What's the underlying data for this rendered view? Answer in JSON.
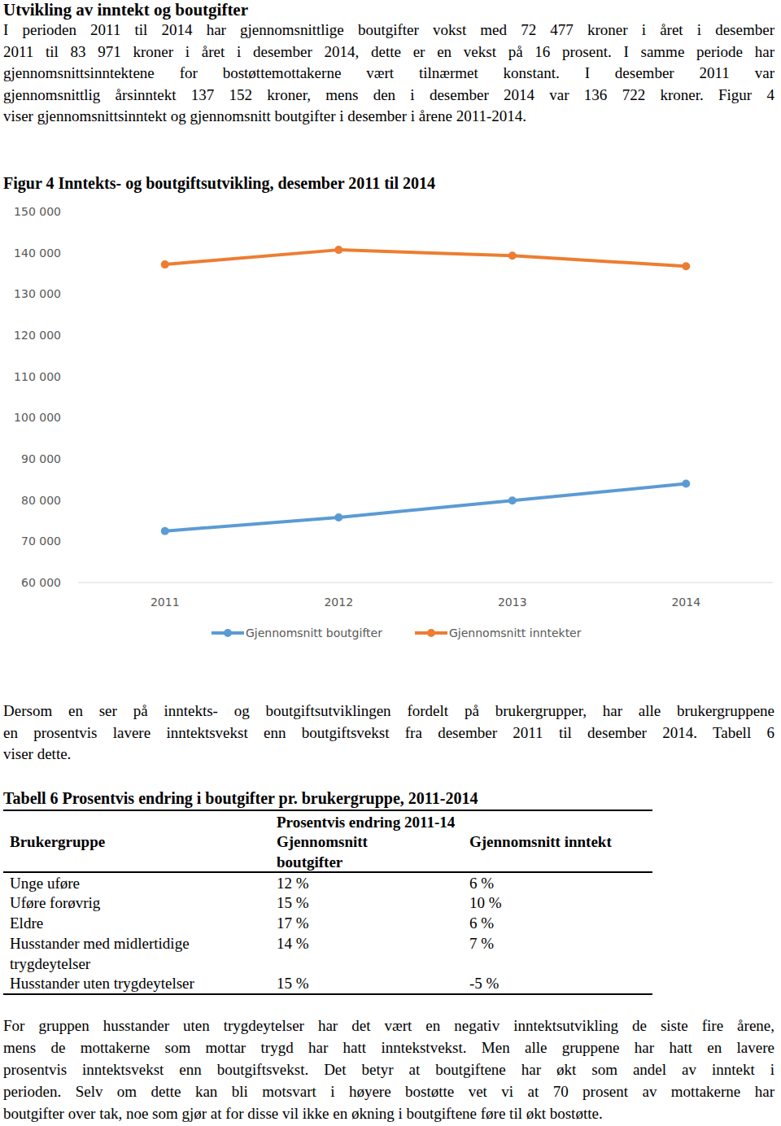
{
  "header": {
    "title": "Utvikling av inntekt og boutgifter"
  },
  "intro": {
    "lines": [
      "I perioden 2011 til 2014 har gjennomsnittlige boutgifter vokst med 72 477 kroner i året i desember",
      "2011 til 83 971 kroner i året i desember 2014, dette er en vekst på 16 prosent. I samme periode har",
      "gjennomsnittsinntektene for bostøttemottakerne vært tilnærmet konstant. I desember 2011 var",
      "gjennomsnittlig årsinntekt 137 152 kroner, mens den i desember 2014 var 136 722 kroner. Figur 4",
      "viser gjennomsnittsinntekt og gjennomsnitt boutgifter i desember i årene 2011-2014."
    ]
  },
  "chart_data": {
    "type": "line",
    "title": "Figur 4 Inntekts- og boutgiftsutvikling, desember 2011 til 2014",
    "categories": [
      "2011",
      "2012",
      "2013",
      "2014"
    ],
    "series": [
      {
        "name": "Gjennomsnitt boutgifter",
        "color": "#5b9bd5",
        "marker": "circle",
        "values": [
          72477,
          75800,
          79900,
          83971
        ]
      },
      {
        "name": "Gjennomsnitt inntekter",
        "color": "#ed7d31",
        "marker": "circle",
        "values": [
          137152,
          140700,
          139300,
          136722
        ]
      }
    ],
    "ylim": [
      60000,
      150000
    ],
    "yticks": [
      {
        "value": 60000,
        "label": "60 000"
      },
      {
        "value": 70000,
        "label": "70 000"
      },
      {
        "value": 80000,
        "label": "80 000"
      },
      {
        "value": 90000,
        "label": "90 000"
      },
      {
        "value": 100000,
        "label": "100 000"
      },
      {
        "value": 110000,
        "label": "110 000"
      },
      {
        "value": 120000,
        "label": "120 000"
      },
      {
        "value": 130000,
        "label": "130 000"
      },
      {
        "value": 140000,
        "label": "140 000"
      },
      {
        "value": 150000,
        "label": "150 000"
      }
    ],
    "grid": false,
    "legend": "bottom"
  },
  "after_chart": {
    "lines": [
      "Dersom en ser på inntekts- og boutgiftsutviklingen fordelt på brukergrupper, har alle brukergruppene",
      "en prosentvis lavere inntektsvekst enn boutgiftsvekst fra desember 2011 til desember 2014. Tabell 6",
      "viser dette."
    ]
  },
  "table": {
    "caption": "Tabell 6 Prosentvis endring i boutgifter pr. brukergruppe, 2011-2014",
    "group_header": "Prosentvis endring 2011-14",
    "columns": [
      "Brukergruppe",
      "Gjennomsnitt boutgifter",
      "Gjennomsnitt inntekt"
    ],
    "rows": [
      [
        "Unge uføre",
        "12 %",
        "6 %"
      ],
      [
        "Uføre forøvrig",
        "15 %",
        "10 %"
      ],
      [
        "Eldre",
        "17 %",
        "6 %"
      ],
      [
        "Husstander med midlertidige trygdeytelser",
        "14 %",
        "7 %"
      ],
      [
        "Husstander uten trygdeytelser",
        "15 %",
        "-5 %"
      ]
    ]
  },
  "closing": {
    "lines": [
      "For gruppen husstander uten trygdeytelser har det vært en negativ inntektsutvikling de siste fire årene,",
      "mens de mottakerne som mottar trygd har hatt inntekstvekst. Men alle gruppene har hatt en lavere",
      "prosentvis inntektsvekst enn boutgiftsvekst. Det betyr at boutgiftene har økt som andel av inntekt i",
      "perioden. Selv om dette kan bli motsvart i høyere bostøtte vet vi at 70 prosent av mottakerne har",
      "boutgifter over tak, noe som gjør at for disse vil ikke en økning i boutgiftene føre til økt bostøtte."
    ]
  }
}
